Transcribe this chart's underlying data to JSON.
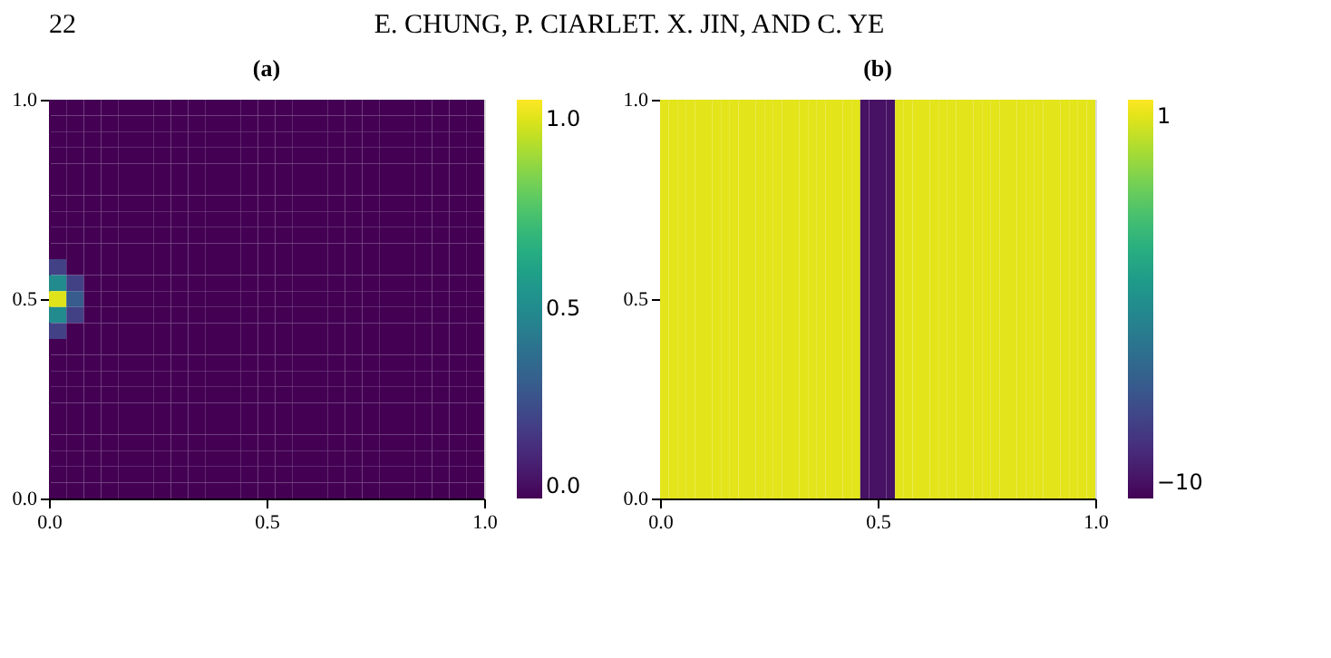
{
  "chart_data": [
    {
      "type": "heatmap",
      "title": "(a)",
      "annotations": [
        "22",
        "E. CHUNG, P. CIARLET. X. JIN, AND C. YE"
      ],
      "xlim": [
        0,
        1
      ],
      "ylim": [
        0,
        1
      ],
      "xticks": [
        {
          "value": 0,
          "label": "0.0"
        },
        {
          "value": 0.5,
          "label": "0.5"
        },
        {
          "value": 1,
          "label": "1.0"
        }
      ],
      "yticks": [
        {
          "value": 0,
          "label": "0.0"
        },
        {
          "value": 0.5,
          "label": "0.5"
        },
        {
          "value": 1,
          "label": "1.0"
        }
      ],
      "clim": [
        0,
        1.05
      ],
      "cticks": [
        {
          "value": 0,
          "label": "0.0"
        },
        {
          "value": 0.5,
          "label": "0.5"
        },
        {
          "value": 1,
          "label": "1.0"
        }
      ],
      "grid": false,
      "cells": [
        [
          0,
          0,
          0,
          0,
          0,
          0,
          0,
          0,
          0,
          0,
          0,
          0,
          0,
          0,
          0,
          0,
          0,
          0,
          0,
          0,
          0,
          0,
          0,
          0,
          0
        ],
        [
          0,
          0,
          0,
          0,
          0,
          0,
          0,
          0,
          0,
          0,
          0,
          0,
          0,
          0,
          0,
          0,
          0,
          0,
          0,
          0,
          0,
          0,
          0,
          0,
          0
        ],
        [
          0,
          0,
          0,
          0,
          0,
          0,
          0,
          0,
          0,
          0,
          0,
          0,
          0,
          0,
          0,
          0,
          0,
          0,
          0,
          0,
          0,
          0,
          0,
          0,
          0
        ],
        [
          0,
          0,
          0,
          0,
          0,
          0,
          0,
          0,
          0,
          0,
          0,
          0,
          0,
          0,
          0,
          0,
          0,
          0,
          0,
          0,
          0,
          0,
          0,
          0,
          0
        ],
        [
          0,
          0,
          0,
          0,
          0,
          0,
          0,
          0,
          0,
          0,
          0,
          0,
          0,
          0,
          0,
          0,
          0,
          0,
          0,
          0,
          0,
          0,
          0,
          0,
          0
        ],
        [
          0,
          0,
          0,
          0,
          0,
          0,
          0,
          0,
          0,
          0,
          0,
          0,
          0,
          0,
          0,
          0,
          0,
          0,
          0,
          0,
          0,
          0,
          0,
          0,
          0
        ],
        [
          0,
          0,
          0,
          0,
          0,
          0,
          0,
          0,
          0,
          0,
          0,
          0,
          0,
          0,
          0,
          0,
          0,
          0,
          0,
          0,
          0,
          0,
          0,
          0,
          0
        ],
        [
          0,
          0,
          0,
          0,
          0,
          0,
          0,
          0,
          0,
          0,
          0,
          0,
          0,
          0,
          0,
          0,
          0,
          0,
          0,
          0,
          0,
          0,
          0,
          0,
          0
        ],
        [
          0,
          0,
          0,
          0,
          0,
          0,
          0,
          0,
          0,
          0,
          0,
          0,
          0,
          0,
          0,
          0,
          0,
          0,
          0,
          0,
          0,
          0,
          0,
          0,
          0
        ],
        [
          0,
          0,
          0,
          0,
          0,
          0,
          0,
          0,
          0,
          0,
          0,
          0,
          0,
          0,
          0,
          0,
          0,
          0,
          0,
          0,
          0,
          0,
          0,
          0,
          0
        ],
        [
          0.2,
          0,
          0,
          0,
          0,
          0,
          0,
          0,
          0,
          0,
          0,
          0,
          0,
          0,
          0,
          0,
          0,
          0,
          0,
          0,
          0,
          0,
          0,
          0,
          0
        ],
        [
          0.5,
          0.2,
          0,
          0,
          0,
          0,
          0,
          0,
          0,
          0,
          0,
          0,
          0,
          0,
          0,
          0,
          0,
          0,
          0,
          0,
          0,
          0,
          0,
          0,
          0
        ],
        [
          1,
          0.3,
          0,
          0,
          0,
          0,
          0,
          0,
          0,
          0,
          0,
          0,
          0,
          0,
          0,
          0,
          0,
          0,
          0,
          0,
          0,
          0,
          0,
          0,
          0
        ],
        [
          0.5,
          0.2,
          0,
          0,
          0,
          0,
          0,
          0,
          0,
          0,
          0,
          0,
          0,
          0,
          0,
          0,
          0,
          0,
          0,
          0,
          0,
          0,
          0,
          0,
          0
        ],
        [
          0.2,
          0,
          0,
          0,
          0,
          0,
          0,
          0,
          0,
          0,
          0,
          0,
          0,
          0,
          0,
          0,
          0,
          0,
          0,
          0,
          0,
          0,
          0,
          0,
          0
        ],
        [
          0,
          0,
          0,
          0,
          0,
          0,
          0,
          0,
          0,
          0,
          0,
          0,
          0,
          0,
          0,
          0,
          0,
          0,
          0,
          0,
          0,
          0,
          0,
          0,
          0
        ],
        [
          0,
          0,
          0,
          0,
          0,
          0,
          0,
          0,
          0,
          0,
          0,
          0,
          0,
          0,
          0,
          0,
          0,
          0,
          0,
          0,
          0,
          0,
          0,
          0,
          0
        ],
        [
          0,
          0,
          0,
          0,
          0,
          0,
          0,
          0,
          0,
          0,
          0,
          0,
          0,
          0,
          0,
          0,
          0,
          0,
          0,
          0,
          0,
          0,
          0,
          0,
          0
        ],
        [
          0,
          0,
          0,
          0,
          0,
          0,
          0,
          0,
          0,
          0,
          0,
          0,
          0,
          0,
          0,
          0,
          0,
          0,
          0,
          0,
          0,
          0,
          0,
          0,
          0
        ],
        [
          0,
          0,
          0,
          0,
          0,
          0,
          0,
          0,
          0,
          0,
          0,
          0,
          0,
          0,
          0,
          0,
          0,
          0,
          0,
          0,
          0,
          0,
          0,
          0,
          0
        ],
        [
          0,
          0,
          0,
          0,
          0,
          0,
          0,
          0,
          0,
          0,
          0,
          0,
          0,
          0,
          0,
          0,
          0,
          0,
          0,
          0,
          0,
          0,
          0,
          0,
          0
        ],
        [
          0,
          0,
          0,
          0,
          0,
          0,
          0,
          0,
          0,
          0,
          0,
          0,
          0,
          0,
          0,
          0,
          0,
          0,
          0,
          0,
          0,
          0,
          0,
          0,
          0
        ],
        [
          0,
          0,
          0,
          0,
          0,
          0,
          0,
          0,
          0,
          0,
          0,
          0,
          0,
          0,
          0,
          0,
          0,
          0,
          0,
          0,
          0,
          0,
          0,
          0,
          0
        ],
        [
          0,
          0,
          0,
          0,
          0,
          0,
          0,
          0,
          0,
          0,
          0,
          0,
          0,
          0,
          0,
          0,
          0,
          0,
          0,
          0,
          0,
          0,
          0,
          0,
          0
        ],
        [
          0,
          0,
          0,
          0,
          0,
          0,
          0,
          0,
          0,
          0,
          0,
          0,
          0,
          0,
          0,
          0,
          0,
          0,
          0,
          0,
          0,
          0,
          0,
          0,
          0
        ]
      ]
    },
    {
      "type": "heatmap",
      "title": "(b)",
      "xlim": [
        0,
        1
      ],
      "ylim": [
        0,
        1
      ],
      "xticks": [
        {
          "value": 0,
          "label": "0.0"
        },
        {
          "value": 0.5,
          "label": "0.5"
        },
        {
          "value": 1,
          "label": "1.0"
        }
      ],
      "yticks": [
        {
          "value": 0,
          "label": "0.0"
        },
        {
          "value": 0.5,
          "label": "0.5"
        },
        {
          "value": 1,
          "label": "1.0"
        }
      ],
      "clim": [
        -10.5,
        1.5
      ],
      "cticks": [
        1,
        {
          "value": -10,
          "label": "−10"
        }
      ],
      "grid": false,
      "cells": [
        [
          1,
          1,
          1,
          1,
          1,
          1,
          1,
          1,
          1,
          1,
          1,
          1,
          1,
          1,
          1,
          1,
          1,
          1,
          1,
          1,
          1,
          1,
          1,
          -10,
          -10,
          -10,
          -10,
          1,
          1,
          1,
          1,
          1,
          1,
          1,
          1,
          1,
          1,
          1,
          1,
          1,
          1,
          1,
          1,
          1,
          1,
          1,
          1,
          1,
          1,
          1
        ]
      ]
    }
  ]
}
